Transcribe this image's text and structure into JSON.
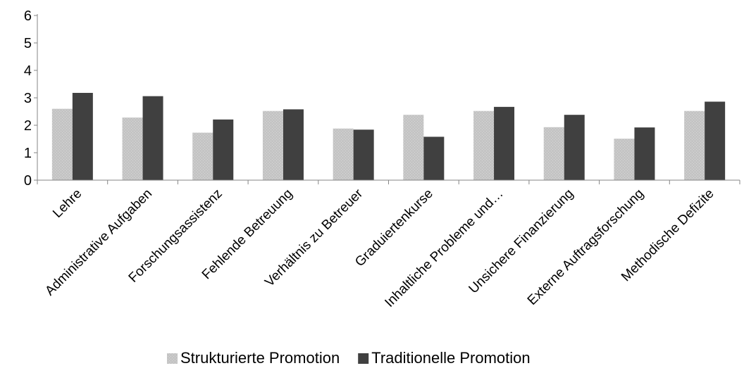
{
  "chart_data": {
    "type": "bar",
    "title": "",
    "xlabel": "",
    "ylabel": "",
    "ylim": [
      0,
      6
    ],
    "yticks": [
      0,
      1,
      2,
      3,
      4,
      5,
      6
    ],
    "grid": false,
    "legend_position": "bottom",
    "categories": [
      "Lehre",
      "Administrative Aufgaben",
      "Forschungsassistenz",
      "Fehlende Betreuung",
      "Verhältnis zu Betreuer",
      "Graduiertenkurse",
      "Inhaltliche Probleme und…",
      "Unsichere Finanzierung",
      "Externe Auftragsforschung",
      "Methodische Defizite"
    ],
    "series": [
      {
        "name": "Strukturierte Promotion",
        "color": "#bfbfbf",
        "values": [
          2.6,
          2.28,
          1.73,
          2.52,
          1.88,
          2.38,
          2.52,
          1.93,
          1.51,
          2.52
        ]
      },
      {
        "name": "Traditionelle Promotion",
        "color": "#404040",
        "values": [
          3.18,
          3.06,
          2.21,
          2.58,
          1.84,
          1.58,
          2.67,
          2.38,
          1.92,
          2.86
        ]
      }
    ]
  }
}
